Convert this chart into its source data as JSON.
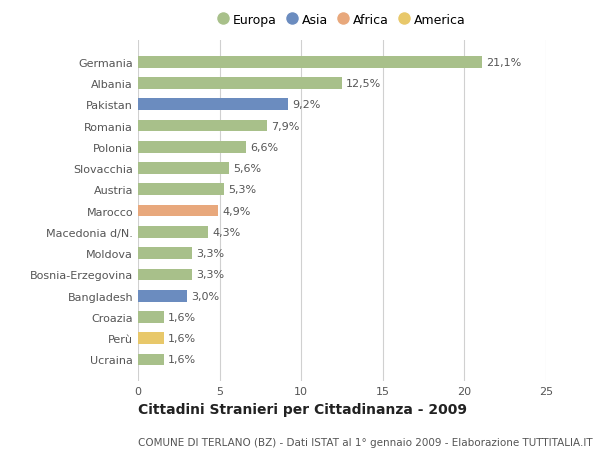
{
  "categories": [
    "Germania",
    "Albania",
    "Pakistan",
    "Romania",
    "Polonia",
    "Slovacchia",
    "Austria",
    "Marocco",
    "Macedonia d/N.",
    "Moldova",
    "Bosnia-Erzegovina",
    "Bangladesh",
    "Croazia",
    "Perù",
    "Ucraina"
  ],
  "values": [
    21.1,
    12.5,
    9.2,
    7.9,
    6.6,
    5.6,
    5.3,
    4.9,
    4.3,
    3.3,
    3.3,
    3.0,
    1.6,
    1.6,
    1.6
  ],
  "labels": [
    "21,1%",
    "12,5%",
    "9,2%",
    "7,9%",
    "6,6%",
    "5,6%",
    "5,3%",
    "4,9%",
    "4,3%",
    "3,3%",
    "3,3%",
    "3,0%",
    "1,6%",
    "1,6%",
    "1,6%"
  ],
  "colors": [
    "#a8c08a",
    "#a8c08a",
    "#6b8cbf",
    "#a8c08a",
    "#a8c08a",
    "#a8c08a",
    "#a8c08a",
    "#e8a87c",
    "#a8c08a",
    "#a8c08a",
    "#a8c08a",
    "#6b8cbf",
    "#a8c08a",
    "#e8c86a",
    "#a8c08a"
  ],
  "legend_labels": [
    "Europa",
    "Asia",
    "Africa",
    "America"
  ],
  "legend_colors": [
    "#a8c08a",
    "#6b8cbf",
    "#e8a87c",
    "#e8c86a"
  ],
  "xlim": [
    0,
    25
  ],
  "xticks": [
    0,
    5,
    10,
    15,
    20,
    25
  ],
  "title": "Cittadini Stranieri per Cittadinanza - 2009",
  "subtitle": "COMUNE DI TERLANO (BZ) - Dati ISTAT al 1° gennaio 2009 - Elaborazione TUTTITALIA.IT",
  "bg_color": "#ffffff",
  "grid_color": "#d0d0d0",
  "bar_height": 0.55,
  "label_fontsize": 8.0,
  "tick_fontsize": 8.0,
  "title_fontsize": 10.0,
  "subtitle_fontsize": 7.5
}
